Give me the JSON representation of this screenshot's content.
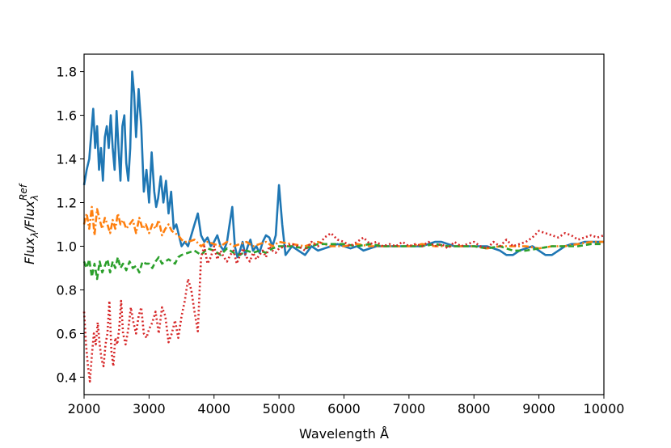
{
  "chart_data": {
    "type": "line",
    "title": "",
    "xlabel": "Wavelength Å",
    "ylabel": {
      "base": "Flux",
      "sub1": "λ",
      "sep": "/Flux",
      "sub2": "λ",
      "sup2": "Ref"
    },
    "xlim": [
      2000,
      10000
    ],
    "ylim": [
      0.32,
      1.88
    ],
    "xticks": [
      2000,
      3000,
      4000,
      5000,
      6000,
      7000,
      8000,
      9000,
      10000
    ],
    "yticks": [
      0.4,
      0.6,
      0.8,
      1.0,
      1.2,
      1.4,
      1.6,
      1.8
    ],
    "ytick_labels": [
      "0.4",
      "0.6",
      "0.8",
      "1.0",
      "1.2",
      "1.4",
      "1.6",
      "1.8"
    ],
    "grid": false,
    "legend": "none",
    "series": [
      {
        "color": "#1f77b4",
        "style": "solid",
        "x": [
          2000,
          2040,
          2080,
          2120,
          2140,
          2170,
          2200,
          2230,
          2260,
          2290,
          2320,
          2350,
          2380,
          2410,
          2440,
          2470,
          2500,
          2530,
          2560,
          2590,
          2620,
          2650,
          2680,
          2710,
          2740,
          2770,
          2800,
          2840,
          2880,
          2920,
          2960,
          3000,
          3040,
          3080,
          3110,
          3140,
          3180,
          3220,
          3260,
          3300,
          3340,
          3380,
          3420,
          3460,
          3500,
          3550,
          3600,
          3650,
          3700,
          3750,
          3800,
          3850,
          3900,
          3950,
          4000,
          4050,
          4100,
          4150,
          4200,
          4240,
          4280,
          4320,
          4360,
          4400,
          4440,
          4480,
          4520,
          4560,
          4600,
          4650,
          4700,
          4750,
          4800,
          4850,
          4900,
          4950,
          5000,
          5050,
          5100,
          5150,
          5200,
          5300,
          5400,
          5500,
          5600,
          5700,
          5800,
          5900,
          6000,
          6100,
          6200,
          6300,
          6400,
          6500,
          6600,
          6700,
          6800,
          6900,
          7000,
          7100,
          7200,
          7300,
          7400,
          7500,
          7600,
          7700,
          7800,
          7900,
          8000,
          8100,
          8200,
          8300,
          8400,
          8500,
          8600,
          8700,
          8800,
          8900,
          9000,
          9100,
          9200,
          9300,
          9400,
          9500,
          9600,
          9700,
          9800,
          9900,
          10000
        ],
        "y": [
          1.28,
          1.35,
          1.4,
          1.55,
          1.63,
          1.45,
          1.55,
          1.35,
          1.45,
          1.3,
          1.5,
          1.55,
          1.45,
          1.6,
          1.45,
          1.35,
          1.62,
          1.45,
          1.3,
          1.55,
          1.6,
          1.38,
          1.3,
          1.45,
          1.8,
          1.7,
          1.5,
          1.72,
          1.55,
          1.25,
          1.35,
          1.2,
          1.43,
          1.25,
          1.18,
          1.22,
          1.32,
          1.2,
          1.3,
          1.15,
          1.25,
          1.08,
          1.1,
          1.05,
          1.0,
          1.02,
          1.0,
          1.05,
          1.1,
          1.15,
          1.05,
          1.02,
          1.04,
          1.0,
          1.02,
          1.05,
          1.0,
          0.98,
          1.02,
          1.1,
          1.18,
          1.0,
          0.95,
          0.98,
          1.02,
          0.96,
          1.0,
          1.03,
          0.98,
          1.0,
          0.97,
          1.02,
          1.05,
          1.04,
          1.0,
          1.05,
          1.28,
          1.1,
          0.96,
          0.98,
          1.0,
          0.98,
          0.96,
          1.0,
          0.98,
          0.99,
          1.0,
          1.01,
          1.0,
          0.99,
          1.0,
          0.98,
          0.99,
          1.0,
          1.0,
          1.0,
          1.0,
          1.0,
          1.0,
          1.0,
          1.0,
          1.01,
          1.02,
          1.02,
          1.01,
          1.0,
          1.0,
          1.0,
          1.0,
          1.0,
          1.0,
          0.99,
          0.98,
          0.96,
          0.96,
          0.98,
          0.99,
          1.0,
          0.98,
          0.96,
          0.96,
          0.98,
          1.0,
          1.01,
          1.01,
          1.02,
          1.02,
          1.02,
          1.02
        ]
      },
      {
        "color": "#ff7f0e",
        "style": "dashdot",
        "x": [
          2000,
          2040,
          2080,
          2120,
          2160,
          2200,
          2240,
          2280,
          2320,
          2360,
          2400,
          2440,
          2480,
          2520,
          2560,
          2600,
          2650,
          2700,
          2750,
          2800,
          2850,
          2900,
          2950,
          3000,
          3050,
          3100,
          3150,
          3200,
          3250,
          3300,
          3350,
          3400,
          3450,
          3500,
          3550,
          3600,
          3700,
          3800,
          3900,
          4000,
          4100,
          4200,
          4300,
          4400,
          4500,
          4600,
          4700,
          4800,
          4900,
          5000,
          5200,
          5400,
          5600,
          5800,
          6000,
          6200,
          6400,
          6600,
          6800,
          7000,
          7200,
          7400,
          7600,
          7800,
          8000,
          8200,
          8400,
          8600,
          8800,
          9000,
          9200,
          9400,
          9600,
          9800,
          10000
        ],
        "y": [
          1.1,
          1.15,
          1.08,
          1.18,
          1.05,
          1.17,
          1.12,
          1.08,
          1.13,
          1.1,
          1.06,
          1.12,
          1.08,
          1.15,
          1.1,
          1.12,
          1.08,
          1.1,
          1.12,
          1.06,
          1.13,
          1.08,
          1.1,
          1.06,
          1.1,
          1.08,
          1.12,
          1.05,
          1.08,
          1.1,
          1.07,
          1.06,
          1.05,
          1.03,
          1.02,
          1.02,
          1.03,
          1.0,
          1.02,
          1.01,
          1.0,
          1.02,
          1.0,
          1.01,
          1.02,
          1.0,
          1.01,
          1.02,
          1.0,
          1.02,
          1.01,
          1.0,
          1.02,
          1.0,
          1.0,
          1.01,
          1.0,
          1.0,
          1.0,
          1.0,
          1.01,
          1.0,
          1.0,
          1.0,
          1.0,
          0.99,
          1.0,
          1.0,
          1.0,
          0.99,
          1.0,
          1.0,
          1.01,
          1.02,
          1.02
        ]
      },
      {
        "color": "#2ca02c",
        "style": "dashed",
        "x": [
          2000,
          2040,
          2080,
          2120,
          2160,
          2200,
          2240,
          2280,
          2320,
          2360,
          2400,
          2440,
          2480,
          2520,
          2560,
          2600,
          2650,
          2700,
          2750,
          2800,
          2850,
          2900,
          2950,
          3000,
          3050,
          3100,
          3150,
          3200,
          3250,
          3300,
          3350,
          3400,
          3450,
          3500,
          3600,
          3700,
          3800,
          3900,
          4000,
          4100,
          4200,
          4300,
          4400,
          4500,
          4600,
          4700,
          4800,
          4900,
          5000,
          5200,
          5400,
          5600,
          5800,
          6000,
          6200,
          6400,
          6600,
          6800,
          7000,
          7200,
          7400,
          7600,
          7800,
          8000,
          8200,
          8400,
          8600,
          8800,
          9000,
          9200,
          9400,
          9600,
          9800,
          10000
        ],
        "y": [
          0.93,
          0.9,
          0.94,
          0.86,
          0.92,
          0.85,
          0.93,
          0.88,
          0.91,
          0.94,
          0.88,
          0.93,
          0.9,
          0.95,
          0.9,
          0.92,
          0.89,
          0.93,
          0.9,
          0.91,
          0.88,
          0.93,
          0.92,
          0.92,
          0.9,
          0.93,
          0.95,
          0.92,
          0.93,
          0.94,
          0.93,
          0.92,
          0.95,
          0.96,
          0.97,
          0.98,
          0.96,
          0.99,
          0.98,
          0.96,
          0.99,
          0.97,
          0.96,
          0.98,
          0.97,
          0.98,
          0.97,
          0.99,
          1.0,
          1.0,
          0.99,
          1.01,
          1.01,
          1.01,
          1.0,
          1.01,
          1.0,
          1.0,
          1.0,
          1.0,
          1.01,
          1.0,
          1.0,
          1.0,
          0.99,
          1.0,
          0.98,
          0.98,
          0.99,
          1.0,
          1.0,
          1.0,
          1.01,
          1.01
        ]
      },
      {
        "color": "#d62728",
        "style": "dotted",
        "x": [
          2000,
          2030,
          2060,
          2090,
          2120,
          2150,
          2180,
          2210,
          2240,
          2270,
          2300,
          2330,
          2360,
          2390,
          2420,
          2450,
          2480,
          2510,
          2540,
          2570,
          2600,
          2640,
          2680,
          2720,
          2760,
          2800,
          2840,
          2880,
          2920,
          2960,
          3000,
          3050,
          3100,
          3150,
          3200,
          3250,
          3300,
          3350,
          3400,
          3450,
          3500,
          3550,
          3600,
          3650,
          3700,
          3750,
          3800,
          3850,
          3900,
          3950,
          4000,
          4050,
          4100,
          4150,
          4200,
          4250,
          4300,
          4350,
          4400,
          4450,
          4500,
          4550,
          4600,
          4650,
          4700,
          4750,
          4800,
          4850,
          4900,
          4950,
          5000,
          5100,
          5200,
          5300,
          5400,
          5500,
          5600,
          5700,
          5800,
          5900,
          6000,
          6100,
          6200,
          6300,
          6400,
          6500,
          6600,
          6700,
          6800,
          6900,
          7000,
          7100,
          7200,
          7300,
          7400,
          7500,
          7600,
          7700,
          7800,
          7900,
          8000,
          8100,
          8200,
          8300,
          8400,
          8500,
          8600,
          8700,
          8800,
          8900,
          9000,
          9100,
          9200,
          9300,
          9400,
          9500,
          9600,
          9700,
          9800,
          9900,
          10000
        ],
        "y": [
          0.7,
          0.55,
          0.45,
          0.38,
          0.5,
          0.6,
          0.55,
          0.65,
          0.55,
          0.48,
          0.45,
          0.55,
          0.6,
          0.75,
          0.52,
          0.45,
          0.58,
          0.55,
          0.62,
          0.75,
          0.6,
          0.55,
          0.62,
          0.72,
          0.65,
          0.6,
          0.68,
          0.72,
          0.6,
          0.58,
          0.62,
          0.65,
          0.7,
          0.6,
          0.72,
          0.68,
          0.56,
          0.6,
          0.66,
          0.58,
          0.68,
          0.75,
          0.85,
          0.8,
          0.7,
          0.61,
          0.95,
          1.0,
          0.92,
          0.95,
          1.0,
          0.94,
          0.98,
          0.95,
          0.93,
          0.96,
          0.98,
          0.92,
          0.96,
          0.99,
          0.95,
          0.93,
          0.97,
          0.94,
          0.96,
          0.98,
          0.95,
          1.0,
          0.98,
          0.97,
          0.99,
          1.0,
          1.01,
          1.0,
          0.98,
          1.02,
          1.0,
          1.04,
          1.06,
          1.03,
          1.02,
          1.0,
          1.02,
          1.04,
          1.01,
          1.02,
          1.0,
          1.01,
          1.0,
          1.02,
          1.0,
          1.01,
          1.0,
          1.02,
          1.0,
          1.01,
          0.99,
          1.02,
          1.0,
          1.01,
          1.02,
          1.0,
          0.99,
          1.02,
          1.0,
          1.03,
          1.0,
          1.01,
          1.02,
          1.04,
          1.07,
          1.06,
          1.05,
          1.04,
          1.06,
          1.05,
          1.03,
          1.04,
          1.05,
          1.04,
          1.05
        ]
      }
    ]
  }
}
